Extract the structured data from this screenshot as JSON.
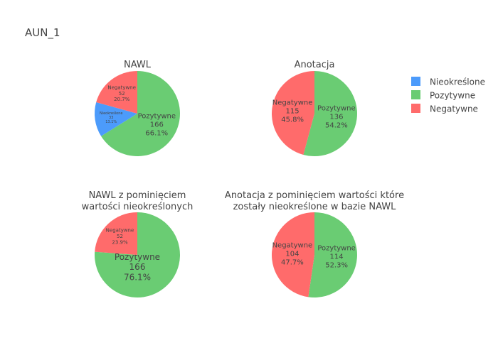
{
  "figure": {
    "title": "AUN_1"
  },
  "legend": {
    "placement": "right",
    "items": [
      {
        "label": "Nieokreślone",
        "color": "#4C9BFB"
      },
      {
        "label": "Pozytywne",
        "color": "#6ACC73"
      },
      {
        "label": "Negatywne",
        "color": "#FF6B6B"
      }
    ]
  },
  "chart_data": [
    {
      "type": "pie",
      "title": "NAWL",
      "slices": [
        {
          "label": "Pozytywne",
          "value": 166,
          "percent": "66.1%",
          "color": "#6ACC73"
        },
        {
          "label": "Nieokreślone",
          "value": 33,
          "percent": "13.1%",
          "color": "#4C9BFB"
        },
        {
          "label": "Negatywne",
          "value": 52,
          "percent": "20.7%",
          "color": "#FF6B6B"
        }
      ]
    },
    {
      "type": "pie",
      "title": "Anotacja",
      "slices": [
        {
          "label": "Pozytywne",
          "value": 136,
          "percent": "54.2%",
          "color": "#6ACC73"
        },
        {
          "label": "Negatywne",
          "value": 115,
          "percent": "45.8%",
          "color": "#FF6B6B"
        }
      ]
    },
    {
      "type": "pie",
      "title": "NAWL z pominięciem wartości nieokreślonych",
      "title_lines": [
        "NAWL z pominięciem",
        "wartości nieokreślonych"
      ],
      "slices": [
        {
          "label": "Pozytywne",
          "value": 166,
          "percent": "76.1%",
          "color": "#6ACC73"
        },
        {
          "label": "Negatywne",
          "value": 52,
          "percent": "23.9%",
          "color": "#FF6B6B"
        }
      ]
    },
    {
      "type": "pie",
      "title": "Anotacja z pominięciem wartości które zostały nieokreślone w bazie NAWL",
      "title_lines": [
        "Anotacja z pominięciem wartości które",
        "zostały nieokreślone w bazie NAWL"
      ],
      "slices": [
        {
          "label": "Pozytywne",
          "value": 114,
          "percent": "52.3%",
          "color": "#6ACC73"
        },
        {
          "label": "Negatywne",
          "value": 104,
          "percent": "47.7%",
          "color": "#FF6B6B"
        }
      ]
    }
  ]
}
